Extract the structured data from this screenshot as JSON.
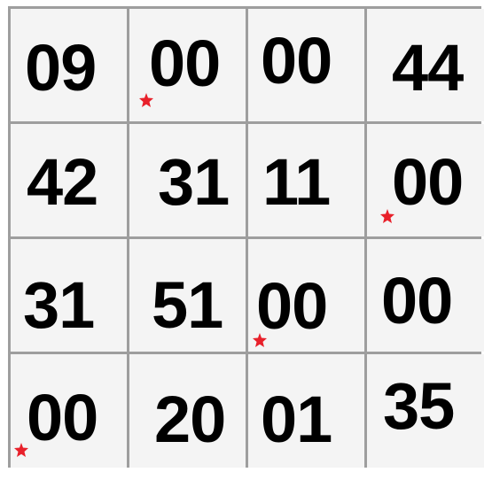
{
  "grid": {
    "rows": 4,
    "cols": 4,
    "cells": [
      {
        "value": "09",
        "marked": false
      },
      {
        "value": "00",
        "marked": true
      },
      {
        "value": "00",
        "marked": false
      },
      {
        "value": "44",
        "marked": false
      },
      {
        "value": "42",
        "marked": false
      },
      {
        "value": "31",
        "marked": false
      },
      {
        "value": "11",
        "marked": false
      },
      {
        "value": "00",
        "marked": true
      },
      {
        "value": "31",
        "marked": false
      },
      {
        "value": "51",
        "marked": false
      },
      {
        "value": "00",
        "marked": true
      },
      {
        "value": "00",
        "marked": false
      },
      {
        "value": "00",
        "marked": true
      },
      {
        "value": "20",
        "marked": false
      },
      {
        "value": "01",
        "marked": false
      },
      {
        "value": "35",
        "marked": false
      }
    ]
  },
  "colors": {
    "grid_line": "#9e9e9e",
    "cell_background": "#f4f4f4",
    "number": "#000000",
    "marker": "#e8202a"
  },
  "icons": {
    "marker": "red-star-icon"
  }
}
